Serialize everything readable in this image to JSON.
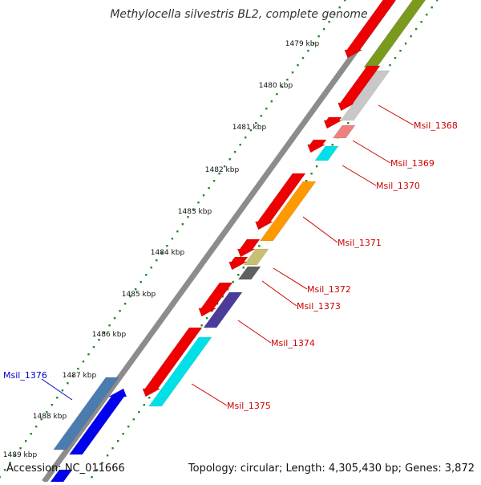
{
  "title": "Methylocella silvestris BL2, complete genome",
  "accession": "Accession: NC_011666",
  "topology": "Topology: circular; Length: 4,305,430 bp; Genes: 3,872",
  "colors": {
    "backbone": "#8c8c8c",
    "tick_dots": "#1e8c1e",
    "label_red": "#cc0000",
    "label_blue": "#0000cc"
  },
  "kbp_ticks": [
    "1479 kbp",
    "1480 kbp",
    "1481 kbp",
    "1482 kbp",
    "1483 kbp",
    "1484 kbp",
    "1485 kbp",
    "1486 kbp",
    "1487 kbp",
    "1488 kbp",
    "1489 kbp"
  ],
  "gene_labels": [
    {
      "name": "Msil_1368",
      "color": "#cc0000"
    },
    {
      "name": "Msil_1369",
      "color": "#cc0000"
    },
    {
      "name": "Msil_1370",
      "color": "#cc0000"
    },
    {
      "name": "Msil_1371",
      "color": "#cc0000"
    },
    {
      "name": "Msil_1372",
      "color": "#cc0000"
    },
    {
      "name": "Msil_1373",
      "color": "#cc0000"
    },
    {
      "name": "Msil_1374",
      "color": "#cc0000"
    },
    {
      "name": "Msil_1375",
      "color": "#cc0000"
    },
    {
      "name": "Msil_1376",
      "color": "#0000cc"
    }
  ],
  "feature_colors": {
    "cds": "#ee0000",
    "olive": "#7a9a1e",
    "light_gray": "#c8c8c8",
    "pink": "#f08080",
    "cyan": "#00e0e8",
    "orange": "#ff9900",
    "khaki": "#c8c070",
    "dark_gray": "#606060",
    "purple": "#4a3c98",
    "blue": "#0000ee",
    "steel_blue": "#4a7cb0"
  }
}
